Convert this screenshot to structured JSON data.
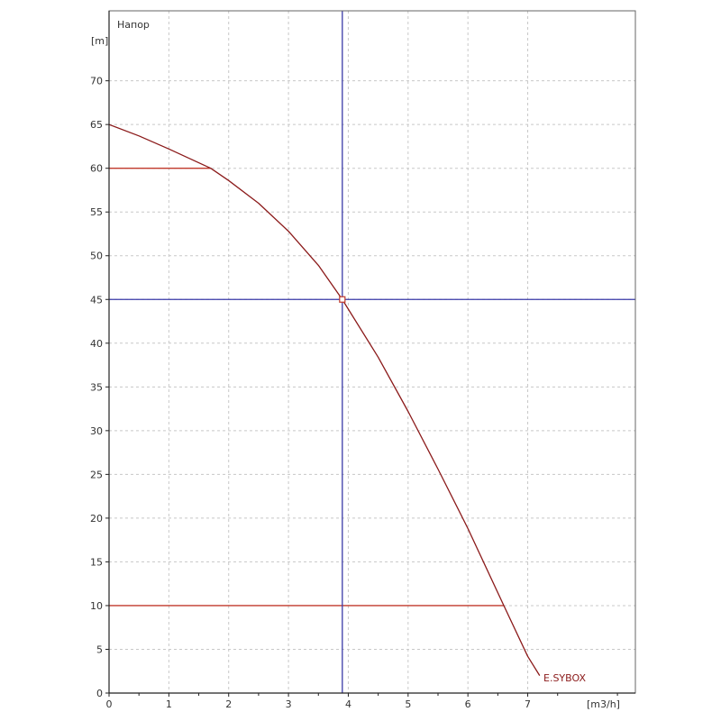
{
  "chart_data": {
    "type": "line",
    "title": "Напор",
    "ylabel": "[m]",
    "xlabel": "[m3/h]",
    "xlim": [
      0,
      8.8
    ],
    "ylim": [
      0,
      78
    ],
    "x_ticks": [
      0,
      1,
      2,
      3,
      4,
      5,
      6,
      7
    ],
    "y_ticks": [
      0,
      5,
      10,
      15,
      20,
      25,
      30,
      35,
      40,
      45,
      50,
      55,
      60,
      65,
      70
    ],
    "grid": true,
    "series": [
      {
        "name": "E.SYBOX",
        "color": "#8b1a1a",
        "x": [
          0,
          0.5,
          1.0,
          1.7,
          2.0,
          2.5,
          3.0,
          3.5,
          3.9,
          4.5,
          5.0,
          5.5,
          6.0,
          6.6,
          7.0,
          7.2
        ],
        "y": [
          65,
          63.7,
          62.2,
          60,
          58.6,
          56,
          52.8,
          48.9,
          45,
          38.4,
          32.2,
          25.6,
          18.8,
          10,
          4.2,
          2
        ]
      }
    ],
    "reference_lines": {
      "pressure_limits": {
        "color": "#c0392b",
        "lines": [
          {
            "y": 60,
            "x_from": 0,
            "x_to": 1.7
          },
          {
            "y": 10,
            "x_from": 0,
            "x_to": 6.6
          }
        ]
      },
      "crosshair": {
        "color": "#3a3aa8",
        "x": 3.9,
        "y": 45
      }
    },
    "operating_point": {
      "x": 3.9,
      "y": 45
    }
  }
}
